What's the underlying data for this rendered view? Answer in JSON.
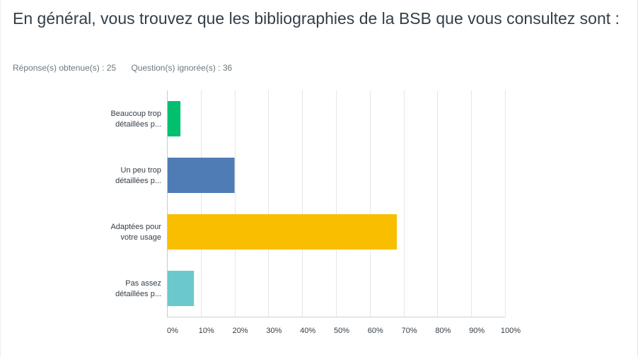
{
  "question": {
    "title": "En général, vous trouvez que les bibliographies de la BSB que vous consultez sont :",
    "answered_label": "Réponse(s) obtenue(s) : 25",
    "skipped_label": "Question(s) ignorée(s) : 36"
  },
  "chart_data": {
    "type": "bar",
    "orientation": "horizontal",
    "title": "",
    "xlabel": "",
    "ylabel": "",
    "xlim": [
      0,
      100
    ],
    "grid": true,
    "categories": [
      [
        "Beaucoup trop",
        "détaillées p..."
      ],
      [
        "Un peu trop",
        "détaillées p..."
      ],
      [
        "Adaptées pour",
        "votre usage"
      ],
      [
        "Pas assez",
        "détaillées p..."
      ]
    ],
    "values": [
      4,
      20,
      68,
      8
    ],
    "colors": [
      "#00bf6f",
      "#507cb6",
      "#f9be00",
      "#6bc8cd"
    ],
    "x_ticks": [
      "0%",
      "10%",
      "20%",
      "30%",
      "40%",
      "50%",
      "60%",
      "70%",
      "80%",
      "90%",
      "100%"
    ]
  }
}
